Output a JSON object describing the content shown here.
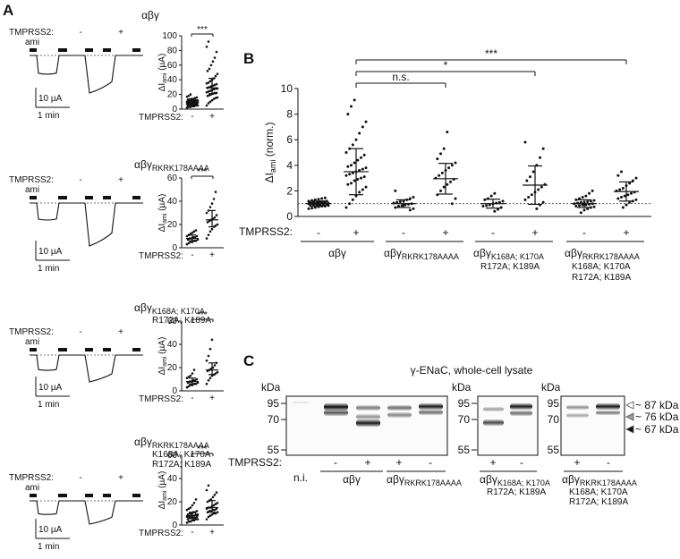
{
  "panel_labels": {
    "a": "A",
    "b": "B",
    "c": "C"
  },
  "common": {
    "ami": "ami",
    "tmprss2": "TMPRSS2:",
    "minus": "-",
    "plus": "+",
    "scale_current": "10 µA",
    "scale_time": "1 min",
    "ylabel_a": "ΔI",
    "ylabel_a_sub": "ami",
    "ylabel_a_unit": " (µA)"
  },
  "panel_a": [
    {
      "title": "αβγ",
      "title_sub": "",
      "title_sub2": "",
      "title_sub3": "",
      "sig": "***",
      "yticks": [
        0,
        20,
        40,
        60,
        80,
        100
      ],
      "ymax": 100,
      "tmp_minus": [
        2,
        3,
        3,
        4,
        4,
        5,
        5,
        5,
        6,
        6,
        6,
        7,
        7,
        7,
        7,
        8,
        8,
        8,
        8,
        9,
        9,
        9,
        9,
        10,
        10,
        10,
        10,
        11,
        11,
        11,
        12,
        12,
        12,
        13,
        13,
        14,
        14,
        15,
        16,
        17,
        18,
        20
      ],
      "tmp_plus": [
        5,
        8,
        10,
        12,
        14,
        15,
        16,
        18,
        19,
        20,
        21,
        22,
        22,
        23,
        24,
        25,
        26,
        27,
        28,
        28,
        29,
        30,
        31,
        32,
        33,
        34,
        35,
        36,
        38,
        40,
        42,
        45,
        48,
        52,
        55,
        60,
        65,
        70,
        78,
        85,
        92
      ]
    },
    {
      "title": "αβγ",
      "title_sub": "RKRK178AAAA",
      "title_sub2": "",
      "title_sub3": "",
      "sig": "***",
      "yticks": [
        0,
        20,
        40,
        60
      ],
      "ymax": 60,
      "tmp_minus": [
        3,
        4,
        5,
        5,
        6,
        6,
        7,
        7,
        8,
        8,
        9,
        9,
        10,
        10,
        11,
        12,
        13,
        14,
        15
      ],
      "tmp_plus": [
        8,
        11,
        14,
        16,
        18,
        19,
        20,
        22,
        23,
        24,
        25,
        26,
        28,
        30,
        32,
        35,
        38,
        42,
        48
      ]
    },
    {
      "title": "αβγ",
      "title_sub": "K168A; K170A",
      "title_sub2": "R172A; K189A",
      "title_sub3": "",
      "sig": "***",
      "yticks": [
        0,
        20,
        40,
        60
      ],
      "ymax": 60,
      "tmp_minus": [
        3,
        4,
        5,
        5,
        6,
        6,
        7,
        7,
        8,
        8,
        9,
        9,
        10,
        11,
        12,
        13,
        15,
        18
      ],
      "tmp_plus": [
        6,
        9,
        11,
        13,
        14,
        15,
        16,
        17,
        18,
        19,
        20,
        22,
        24,
        26,
        30,
        36,
        44
      ]
    },
    {
      "title": "αβγ",
      "title_sub": "RKRK178AAAA",
      "title_sub2": "K168A; K170A",
      "title_sub3": "R172A; K189A",
      "sig": "***",
      "yticks": [
        0,
        20,
        40,
        60
      ],
      "ymax": 60,
      "tmp_minus": [
        2,
        3,
        3,
        4,
        4,
        5,
        5,
        5,
        6,
        6,
        6,
        6,
        7,
        7,
        7,
        8,
        8,
        8,
        9,
        9,
        9,
        10,
        10,
        11,
        11,
        12,
        13,
        14,
        15,
        17,
        19,
        22
      ],
      "tmp_plus": [
        5,
        7,
        8,
        9,
        10,
        10,
        11,
        11,
        12,
        12,
        13,
        13,
        14,
        14,
        15,
        15,
        16,
        17,
        18,
        19,
        20,
        21,
        22,
        24,
        26,
        28,
        30,
        34
      ]
    }
  ],
  "chart_data": {
    "type": "scatter",
    "ylabel": "ΔI",
    "ylabel_sub": "ami",
    "ylabel_unit": " (norm.)",
    "ylim": [
      0,
      10
    ],
    "yticks": [
      0,
      2,
      4,
      6,
      8,
      10
    ],
    "reference_line": 1,
    "xrow_label": "TMPRSS2:",
    "groups": [
      {
        "label": "αβγ",
        "sub": "",
        "sub2": "",
        "sub3": "",
        "minus": [
          0.6,
          0.65,
          0.7,
          0.75,
          0.8,
          0.8,
          0.85,
          0.85,
          0.9,
          0.9,
          0.9,
          0.95,
          0.95,
          1.0,
          1.0,
          1.0,
          1.0,
          1.05,
          1.05,
          1.05,
          1.1,
          1.1,
          1.1,
          1.15,
          1.15,
          1.2,
          1.2,
          1.25,
          1.3,
          1.35,
          1.4,
          1.45
        ],
        "minus_mean": 1.0,
        "minus_sd": 0.2,
        "plus": [
          0.7,
          1.0,
          1.3,
          1.6,
          1.9,
          2.1,
          2.3,
          2.5,
          2.6,
          2.8,
          2.9,
          3.0,
          3.1,
          3.2,
          3.3,
          3.4,
          3.5,
          3.6,
          3.7,
          3.8,
          3.9,
          4.0,
          4.2,
          4.4,
          4.6,
          4.8,
          5.0,
          5.3,
          5.6,
          6.0,
          6.5,
          7.0,
          7.4,
          8.0,
          8.6,
          9.1
        ],
        "plus_mean": 3.5,
        "plus_sd": 1.8
      },
      {
        "label": "αβγ",
        "sub": "RKRK178AAAA",
        "sub2": "",
        "sub3": "",
        "minus": [
          0.5,
          0.6,
          0.7,
          0.8,
          0.85,
          0.9,
          0.95,
          1.0,
          1.05,
          1.1,
          1.15,
          1.2,
          1.3,
          1.4,
          1.5,
          2.0
        ],
        "minus_mean": 1.0,
        "minus_sd": 0.3,
        "plus": [
          1.0,
          1.4,
          1.7,
          2.0,
          2.3,
          2.5,
          2.7,
          2.9,
          3.0,
          3.2,
          3.4,
          3.6,
          3.8,
          4.0,
          4.2,
          4.5,
          4.9,
          5.3,
          6.6
        ],
        "plus_mean": 2.95,
        "plus_sd": 1.2
      },
      {
        "label": "αβγ",
        "sub": "K168A; K170A",
        "sub2": "R172A; K189A",
        "sub3": "",
        "minus": [
          0.4,
          0.55,
          0.7,
          0.8,
          0.85,
          0.9,
          1.0,
          1.05,
          1.1,
          1.2,
          1.3,
          1.4,
          1.6,
          1.8
        ],
        "minus_mean": 1.0,
        "minus_sd": 0.35,
        "plus": [
          0.6,
          0.9,
          1.1,
          1.3,
          1.5,
          1.7,
          1.9,
          2.1,
          2.3,
          2.5,
          2.8,
          3.1,
          3.5,
          4.0,
          4.6,
          5.3,
          5.8
        ],
        "plus_mean": 2.45,
        "plus_sd": 1.5
      },
      {
        "label": "αβγ",
        "sub": "RKRK178AAAA",
        "sub2": "K168A; K170A",
        "sub3": "R172A; K189A",
        "minus": [
          0.3,
          0.5,
          0.6,
          0.7,
          0.75,
          0.8,
          0.85,
          0.9,
          0.9,
          0.95,
          1.0,
          1.0,
          1.05,
          1.1,
          1.1,
          1.15,
          1.2,
          1.25,
          1.3,
          1.4,
          1.5,
          1.6,
          1.8,
          2.0
        ],
        "minus_mean": 1.0,
        "minus_sd": 0.3,
        "plus": [
          0.7,
          0.9,
          1.1,
          1.2,
          1.3,
          1.4,
          1.5,
          1.6,
          1.7,
          1.8,
          1.9,
          2.0,
          2.1,
          2.2,
          2.4,
          2.6,
          2.8,
          3.0,
          3.2,
          3.5
        ],
        "plus_mean": 1.95,
        "plus_sd": 0.75
      }
    ],
    "comparisons": [
      {
        "label": "n.s.",
        "target": 1
      },
      {
        "label": "*",
        "target": 2
      },
      {
        "label": "***",
        "target": 3
      }
    ]
  },
  "panel_c": {
    "title": "γ-ENaC, whole-cell lysate",
    "kda": "kDa",
    "markers": [
      "95",
      "70",
      "55"
    ],
    "band_labels": [
      "~ 87 kDa",
      "~ 76 kDa",
      "~ 67 kDa"
    ],
    "row_label": "TMPRSS2:",
    "ni": "n.i.",
    "blot1_lanes": [
      "n.i.",
      "-",
      "+",
      "+",
      "-"
    ],
    "blot2_lanes": [
      "+",
      "-"
    ],
    "blot3_lanes": [
      "+",
      "-"
    ],
    "groups": [
      {
        "label": "αβγ",
        "sub": "",
        "sub2": "",
        "sub3": ""
      },
      {
        "label": "αβγ",
        "sub": "RKRK178AAAA",
        "sub2": "",
        "sub3": ""
      },
      {
        "label": "αβγ",
        "sub": "K168A; K170A",
        "sub2": "R172A; K189A",
        "sub3": ""
      },
      {
        "label": "αβγ",
        "sub": "RKRK178AAAA",
        "sub2": "K168A; K170A",
        "sub3": "R172A; K189A"
      }
    ]
  }
}
